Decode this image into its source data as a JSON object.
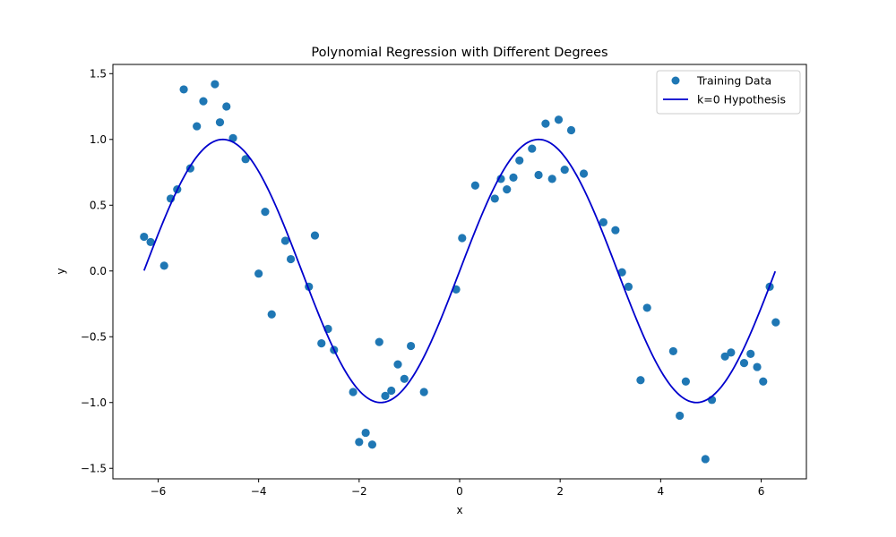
{
  "chart_data": {
    "type": "scatter",
    "title": "Polynomial Regression with Different Degrees",
    "xlabel": "x",
    "ylabel": "y",
    "xlim": [
      -6.9,
      6.9
    ],
    "ylim": [
      -1.58,
      1.57
    ],
    "xticks": [
      -6,
      -4,
      -2,
      0,
      2,
      4,
      6
    ],
    "xtick_labels": [
      "−6",
      "−4",
      "−2",
      "0",
      "2",
      "4",
      "6"
    ],
    "yticks": [
      -1.5,
      -1.0,
      -0.5,
      0.0,
      0.5,
      1.0,
      1.5
    ],
    "ytick_labels": [
      "−1.5",
      "−1.0",
      "−0.5",
      "0.0",
      "0.5",
      "1.0",
      "1.5"
    ],
    "grid": false,
    "legend_position": "top-right",
    "series": [
      {
        "name": "Training Data",
        "kind": "scatter",
        "color": "#1f77b4",
        "points": [
          [
            -6.28,
            0.26
          ],
          [
            -6.15,
            0.22
          ],
          [
            -5.88,
            0.04
          ],
          [
            -5.75,
            0.55
          ],
          [
            -5.62,
            0.62
          ],
          [
            -5.49,
            1.38
          ],
          [
            -5.36,
            0.78
          ],
          [
            -5.23,
            1.1
          ],
          [
            -5.1,
            1.29
          ],
          [
            -4.87,
            1.42
          ],
          [
            -4.77,
            1.13
          ],
          [
            -4.64,
            1.25
          ],
          [
            -4.51,
            1.01
          ],
          [
            -4.26,
            0.85
          ],
          [
            -4.0,
            -0.02
          ],
          [
            -3.87,
            0.45
          ],
          [
            -3.74,
            -0.33
          ],
          [
            -3.47,
            0.23
          ],
          [
            -3.36,
            0.09
          ],
          [
            -3.0,
            -0.12
          ],
          [
            -2.88,
            0.27
          ],
          [
            -2.75,
            -0.55
          ],
          [
            -2.62,
            -0.44
          ],
          [
            -2.5,
            -0.6
          ],
          [
            -2.12,
            -0.92
          ],
          [
            -2.0,
            -1.3
          ],
          [
            -1.87,
            -1.23
          ],
          [
            -1.74,
            -1.32
          ],
          [
            -1.6,
            -0.54
          ],
          [
            -1.48,
            -0.95
          ],
          [
            -1.36,
            -0.91
          ],
          [
            -1.23,
            -0.71
          ],
          [
            -1.1,
            -0.82
          ],
          [
            -0.97,
            -0.57
          ],
          [
            -0.71,
            -0.92
          ],
          [
            -0.07,
            -0.14
          ],
          [
            0.05,
            0.25
          ],
          [
            0.31,
            0.65
          ],
          [
            0.7,
            0.55
          ],
          [
            0.82,
            0.7
          ],
          [
            0.94,
            0.62
          ],
          [
            1.07,
            0.71
          ],
          [
            1.19,
            0.84
          ],
          [
            1.44,
            0.93
          ],
          [
            1.57,
            0.73
          ],
          [
            1.71,
            1.12
          ],
          [
            1.84,
            0.7
          ],
          [
            1.97,
            1.15
          ],
          [
            2.09,
            0.77
          ],
          [
            2.22,
            1.07
          ],
          [
            2.47,
            0.74
          ],
          [
            2.86,
            0.37
          ],
          [
            3.1,
            0.31
          ],
          [
            3.23,
            -0.01
          ],
          [
            3.36,
            -0.12
          ],
          [
            3.6,
            -0.83
          ],
          [
            3.73,
            -0.28
          ],
          [
            4.25,
            -0.61
          ],
          [
            4.38,
            -1.1
          ],
          [
            4.5,
            -0.84
          ],
          [
            4.89,
            -1.43
          ],
          [
            5.02,
            -0.98
          ],
          [
            5.28,
            -0.65
          ],
          [
            5.4,
            -0.62
          ],
          [
            5.66,
            -0.7
          ],
          [
            5.79,
            -0.63
          ],
          [
            5.92,
            -0.73
          ],
          [
            6.04,
            -0.84
          ],
          [
            6.17,
            -0.12
          ],
          [
            6.29,
            -0.39
          ]
        ]
      },
      {
        "name": "k=0 Hypothesis",
        "kind": "line",
        "color": "#0000cd",
        "function": "sin",
        "x_range": [
          -6.28,
          6.28
        ]
      }
    ]
  }
}
